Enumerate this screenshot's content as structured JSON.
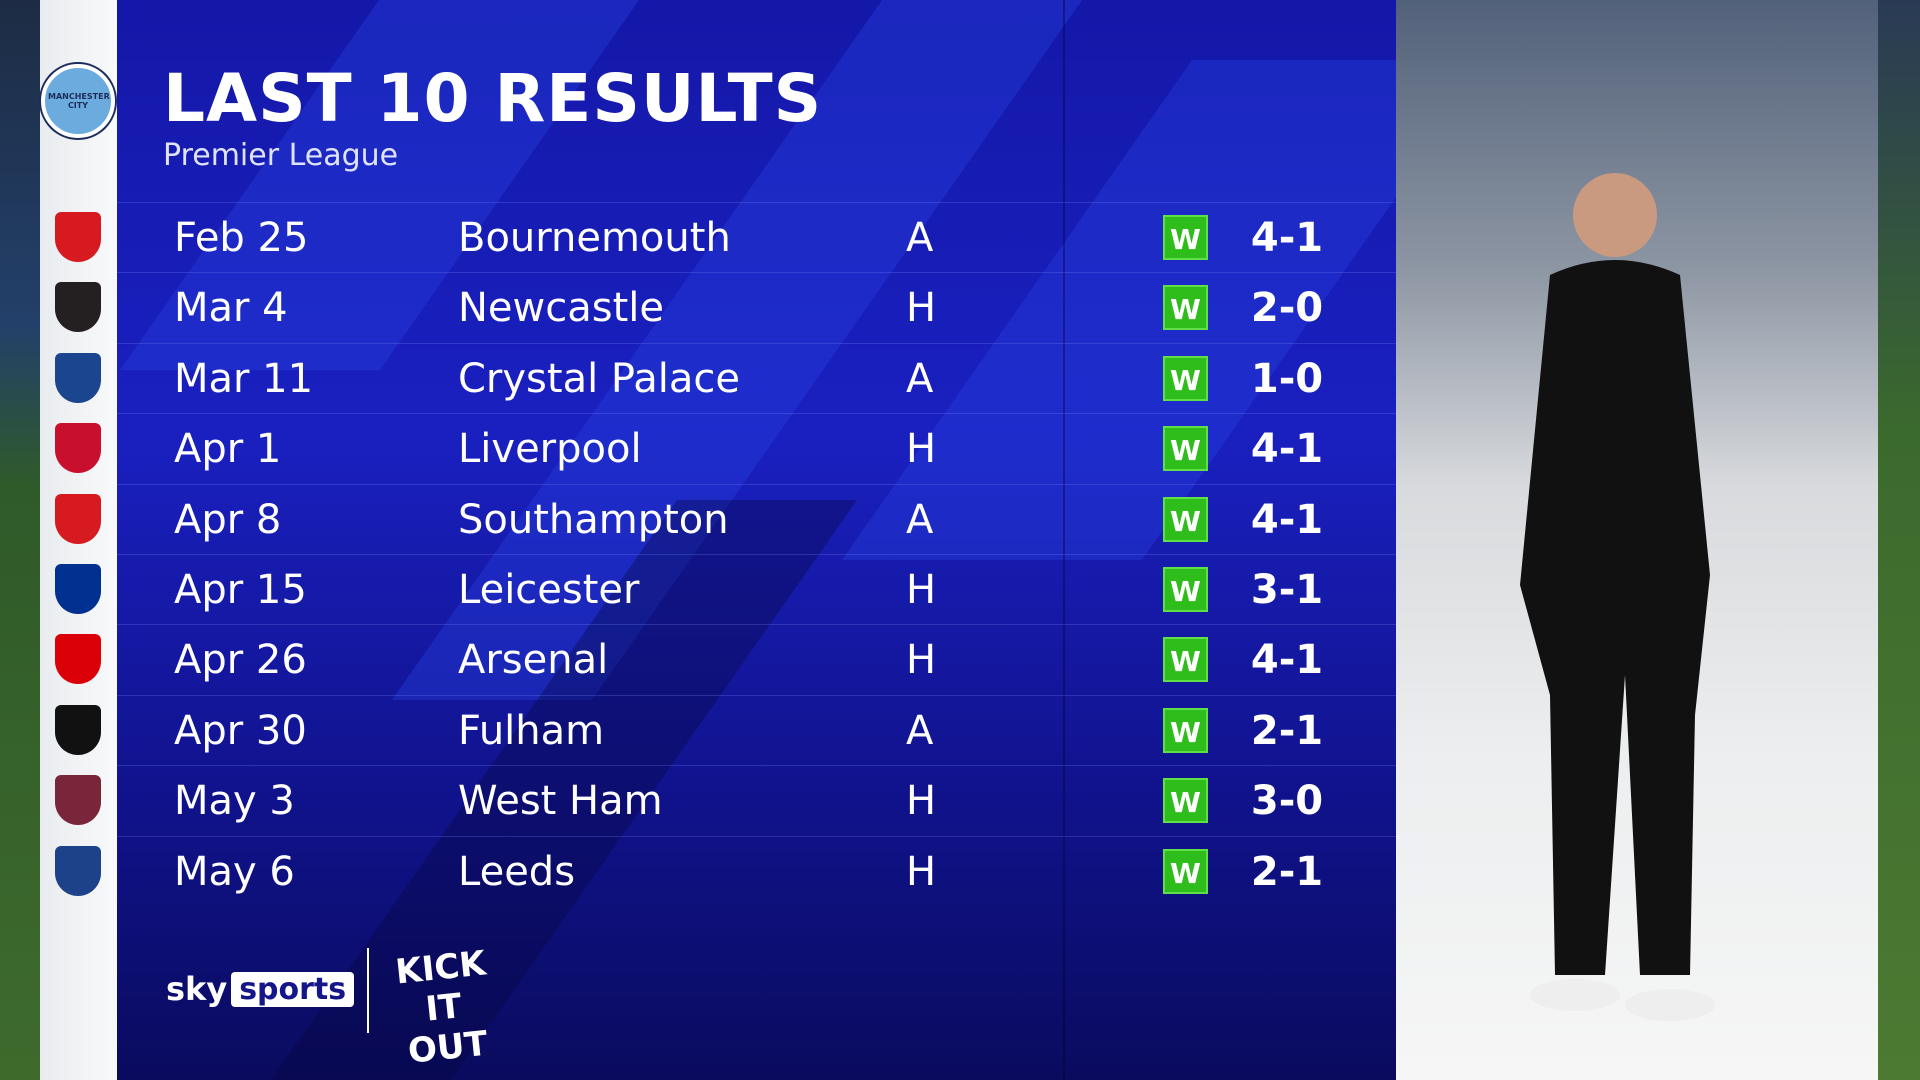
{
  "header": {
    "title": "LAST 10 RESULTS",
    "subtitle": "Premier League"
  },
  "team": {
    "name": "Manchester City",
    "badge_color": "#6cabdd"
  },
  "results": [
    {
      "date": "Feb 25",
      "opponent": "Bournemouth",
      "venue": "A",
      "result": "W",
      "score": "4-1",
      "crest_color": "#d71920"
    },
    {
      "date": "Mar 4",
      "opponent": "Newcastle",
      "venue": "H",
      "result": "W",
      "score": "2-0",
      "crest_color": "#241f20"
    },
    {
      "date": "Mar 11",
      "opponent": "Crystal Palace",
      "venue": "A",
      "result": "W",
      "score": "1-0",
      "crest_color": "#1b458f"
    },
    {
      "date": "Apr 1",
      "opponent": "Liverpool",
      "venue": "H",
      "result": "W",
      "score": "4-1",
      "crest_color": "#c8102e"
    },
    {
      "date": "Apr 8",
      "opponent": "Southampton",
      "venue": "A",
      "result": "W",
      "score": "4-1",
      "crest_color": "#d71920"
    },
    {
      "date": "Apr 15",
      "opponent": "Leicester",
      "venue": "H",
      "result": "W",
      "score": "3-1",
      "crest_color": "#003090"
    },
    {
      "date": "Apr 26",
      "opponent": "Arsenal",
      "venue": "H",
      "result": "W",
      "score": "4-1",
      "crest_color": "#db0007"
    },
    {
      "date": "Apr 30",
      "opponent": "Fulham",
      "venue": "A",
      "result": "W",
      "score": "2-1",
      "crest_color": "#111111"
    },
    {
      "date": "May 3",
      "opponent": "West Ham",
      "venue": "H",
      "result": "W",
      "score": "3-0",
      "crest_color": "#7a263a"
    },
    {
      "date": "May 6",
      "opponent": "Leeds",
      "venue": "H",
      "result": "W",
      "score": "2-1",
      "crest_color": "#1d428a"
    }
  ],
  "colors": {
    "win": "#2ebd1a",
    "panel": "#1418a8"
  },
  "branding": {
    "broadcaster_sky": "sky",
    "broadcaster_sports": "sports",
    "campaign": "KICK IT OUT"
  }
}
